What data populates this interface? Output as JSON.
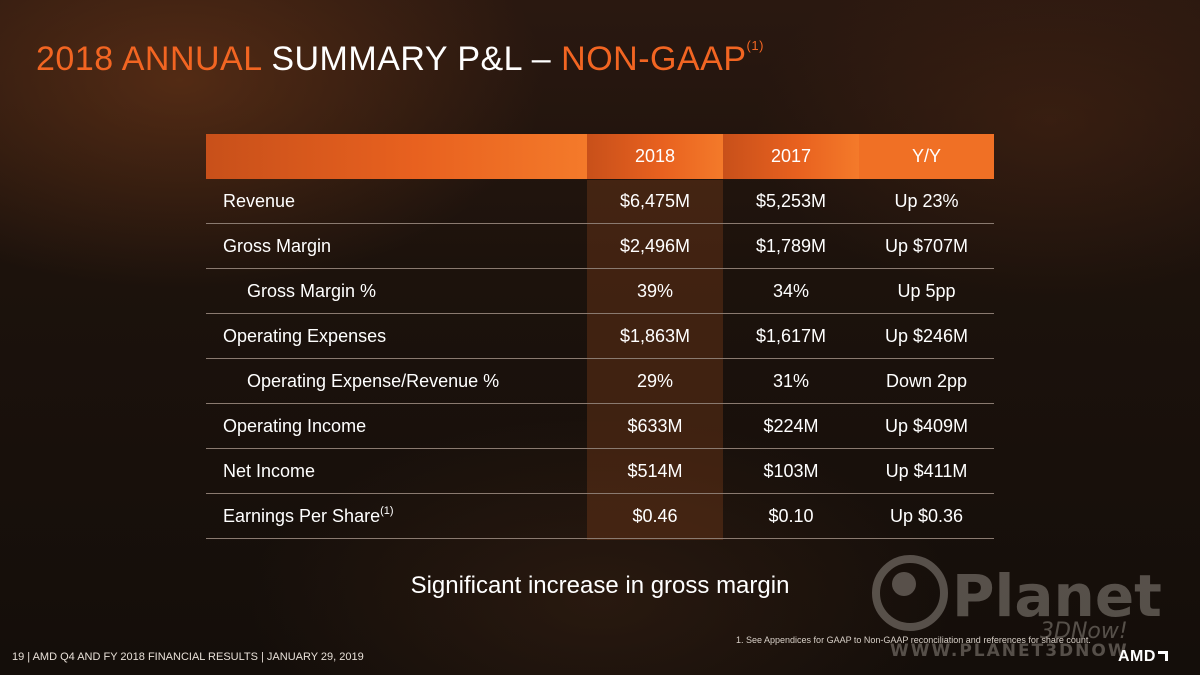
{
  "slide": {
    "title_part1": "2018 ANNUAL",
    "title_part2": "SUMMARY P&L –",
    "title_part3": "NON-GAAP",
    "title_sup": "(1)",
    "summary": "Significant increase in gross margin",
    "footnote": "1.    See Appendices for GAAP to Non-GAAP  reconciliation and references for  share count.",
    "footer": "19  | AMD Q4 AND FY 2018 FINANCIAL RESULTS |  JANUARY 29, 2019",
    "logo_text": "AMD",
    "watermark_line1": "Planet",
    "watermark_line2": "3DNow!",
    "watermark_url": "WWW.PLANET3DNOW"
  },
  "table": {
    "headers": [
      "",
      "2018",
      "2017",
      "Y/Y"
    ],
    "rows": [
      {
        "label": "Revenue",
        "sup": "",
        "indent": false,
        "v2018": "$6,475M",
        "v2017": "$5,253M",
        "yy": "Up 23%"
      },
      {
        "label": "Gross Margin",
        "sup": "",
        "indent": false,
        "v2018": "$2,496M",
        "v2017": "$1,789M",
        "yy": "Up $707M"
      },
      {
        "label": "Gross Margin %",
        "sup": "",
        "indent": true,
        "v2018": "39%",
        "v2017": "34%",
        "yy": "Up 5pp"
      },
      {
        "label": "Operating Expenses",
        "sup": "",
        "indent": false,
        "v2018": "$1,863M",
        "v2017": "$1,617M",
        "yy": "Up $246M"
      },
      {
        "label": "Operating Expense/Revenue  %",
        "sup": "",
        "indent": true,
        "v2018": "29%",
        "v2017": "31%",
        "yy": "Down 2pp"
      },
      {
        "label": "Operating Income",
        "sup": "",
        "indent": false,
        "v2018": "$633M",
        "v2017": "$224M",
        "yy": "Up $409M"
      },
      {
        "label": "Net Income",
        "sup": "",
        "indent": false,
        "v2018": "$514M",
        "v2017": "$103M",
        "yy": "Up $411M"
      },
      {
        "label": "Earnings Per Share",
        "sup": "(1)",
        "indent": false,
        "v2018": "$0.46",
        "v2017": "$0.10",
        "yy": "Up $0.36"
      }
    ]
  },
  "colors": {
    "accent": "#f26522",
    "header_bar": "#e8611f",
    "highlight_column": "#6e3719"
  }
}
